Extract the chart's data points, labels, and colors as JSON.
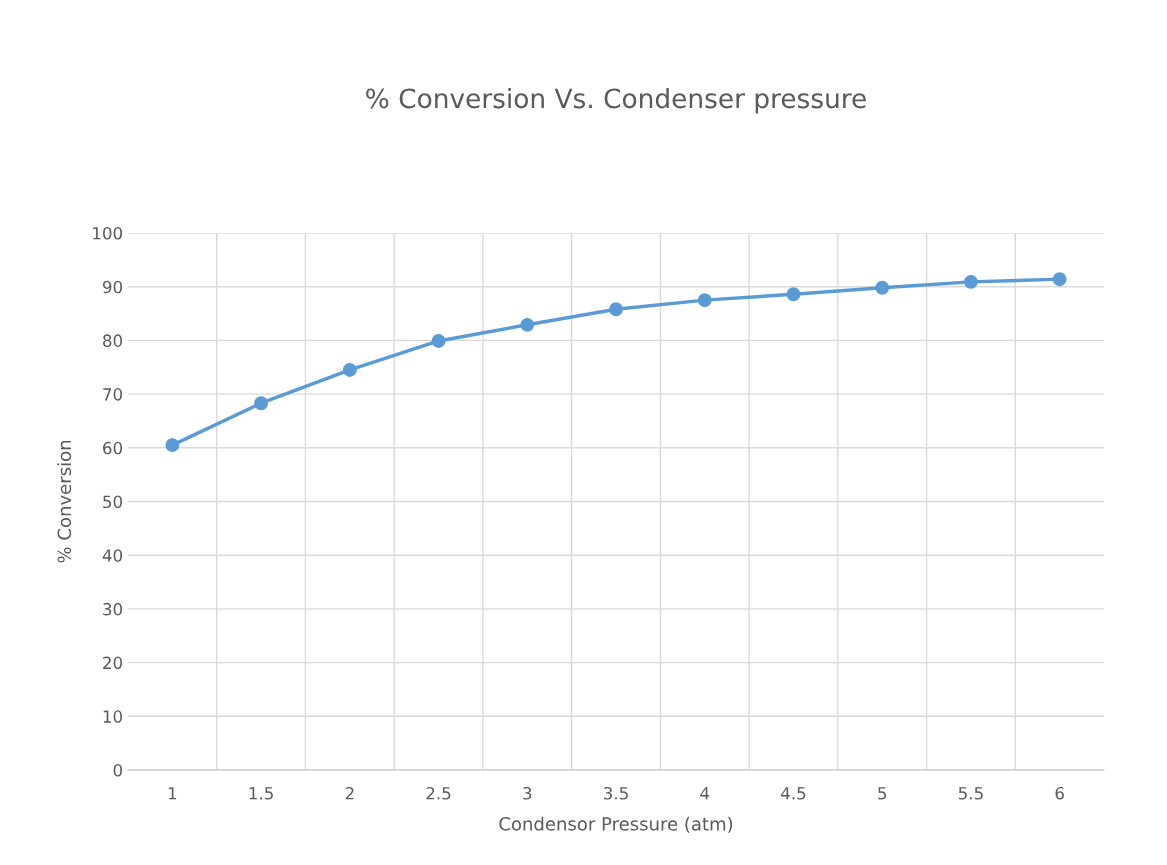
{
  "chart_data": {
    "type": "line",
    "title": "% Conversion Vs. Condenser pressure",
    "xlabel": "Condensor Pressure (atm)",
    "ylabel": "% Conversion",
    "categories": [
      "1",
      "1.5",
      "2",
      "2.5",
      "3",
      "3.5",
      "4",
      "4.5",
      "5",
      "5.5",
      "6"
    ],
    "series": [
      {
        "color": "#5b9bd5",
        "values": [
          60.5,
          68.3,
          74.5,
          79.9,
          82.9,
          85.8,
          87.5,
          88.6,
          89.8,
          90.9,
          91.4
        ]
      }
    ],
    "ylim": [
      0,
      100
    ],
    "yticks": [
      0,
      10,
      20,
      30,
      40,
      50,
      60,
      70,
      80,
      90,
      100
    ],
    "grid": true,
    "marker": "circle",
    "line_style": "solid"
  }
}
